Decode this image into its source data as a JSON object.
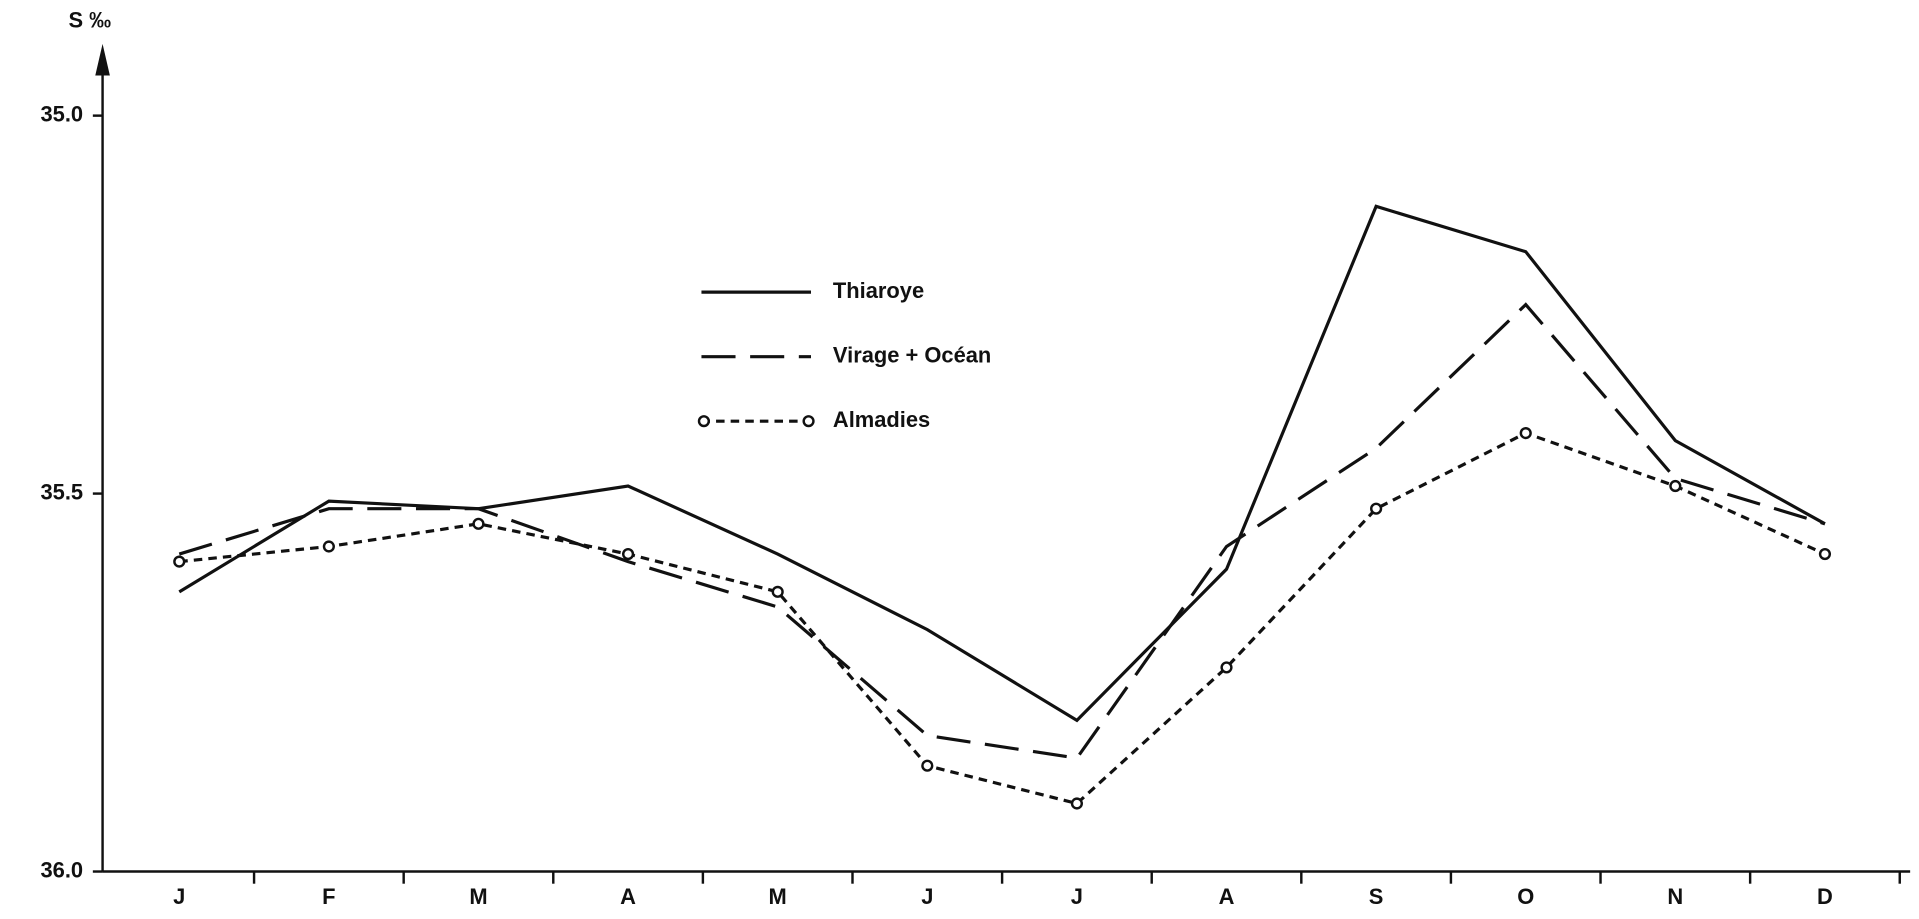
{
  "chart_data": {
    "type": "line",
    "y_label": "S ‰",
    "categories": [
      "J",
      "F",
      "M",
      "A",
      "M",
      "J",
      "J",
      "A",
      "S",
      "O",
      "N",
      "D"
    ],
    "series": [
      {
        "name": "Thiaroye",
        "color": "#111111",
        "dash": "solid",
        "markers": false,
        "values": [
          35.63,
          35.51,
          35.52,
          35.49,
          35.58,
          35.68,
          35.8,
          35.6,
          35.12,
          35.18,
          35.43,
          35.54
        ]
      },
      {
        "name": "Virage + Océan",
        "color": "#111111",
        "dash": "long",
        "markers": false,
        "values": [
          35.58,
          35.52,
          35.52,
          35.59,
          35.65,
          35.82,
          35.85,
          35.57,
          35.44,
          35.25,
          35.48,
          35.54
        ]
      },
      {
        "name": "Almadies",
        "color": "#111111",
        "dash": "short",
        "markers": true,
        "values": [
          35.59,
          35.57,
          35.54,
          35.58,
          35.63,
          35.86,
          35.91,
          35.73,
          35.52,
          35.42,
          35.49,
          35.58
        ]
      }
    ],
    "ylim": [
      36.0,
      35.0
    ],
    "yticks": [
      {
        "value": 35.0,
        "label": "35.0"
      },
      35.5,
      {
        "value": 36.0,
        "label": "36.0"
      }
    ],
    "grid": false
  }
}
